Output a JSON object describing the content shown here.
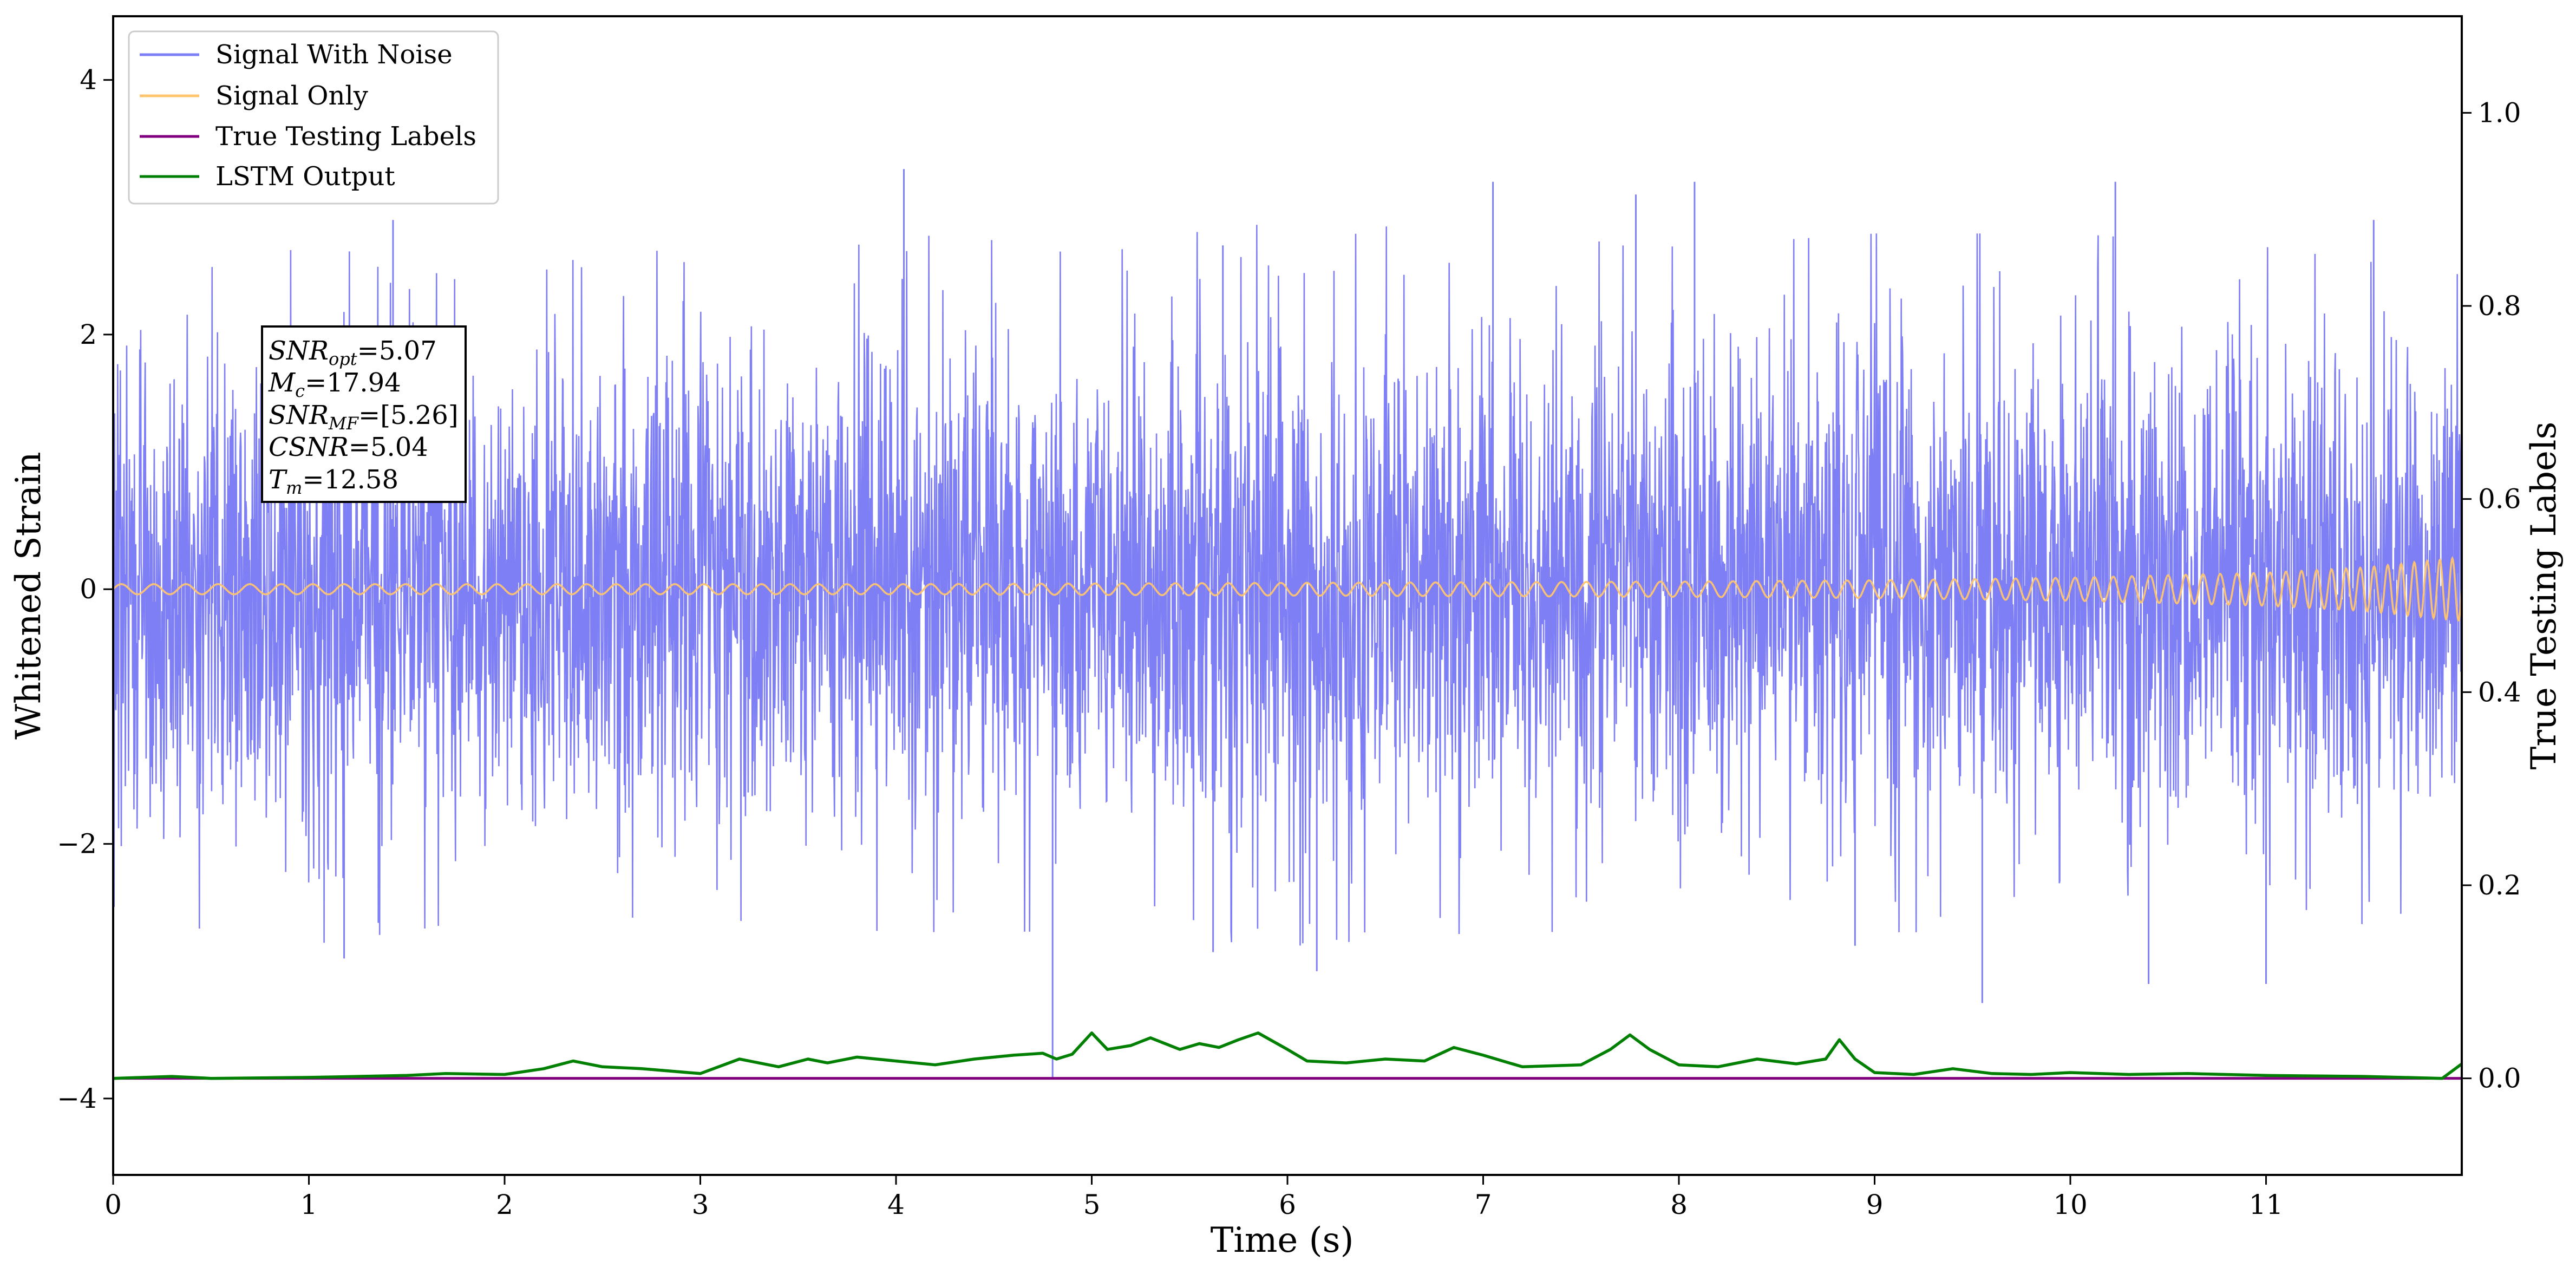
{
  "chart_data": {
    "type": "line",
    "title": "",
    "xlabel": "Time (s)",
    "ylabel_left": "Whitened Strain",
    "ylabel_right": "True Testing Labels",
    "xlim": [
      0,
      12
    ],
    "ylim_left": [
      -4.6,
      4.5
    ],
    "ylim_right": [
      -0.1,
      1.1
    ],
    "x_ticks": [
      0,
      1,
      2,
      3,
      4,
      5,
      6,
      7,
      8,
      9,
      10,
      11
    ],
    "y_ticks_left": [
      -4,
      -2,
      0,
      2,
      4
    ],
    "y_ticks_right": [
      0.0,
      0.2,
      0.4,
      0.6,
      0.8,
      1.0
    ],
    "y_tick_labels_left": [
      "−4",
      "−2",
      "0",
      "2",
      "4"
    ],
    "y_tick_labels_right": [
      "0.0",
      "0.2",
      "0.4",
      "0.6",
      "0.8",
      "1.0"
    ],
    "grid": false,
    "legend_position": "top-left",
    "series": [
      {
        "name": "Signal With Noise",
        "color": "#7f7ff5",
        "axis": "left",
        "description": "noise-dominated whitened strain",
        "envelope_x": [
          0,
          1,
          2,
          3,
          4,
          5,
          6,
          7,
          8,
          9,
          10,
          11,
          12
        ],
        "envelope_high": [
          2.1,
          2.4,
          2.3,
          2.4,
          2.5,
          2.4,
          2.6,
          2.5,
          2.4,
          2.5,
          2.5,
          2.4,
          2.2
        ],
        "envelope_low": [
          -2.3,
          -2.5,
          -2.3,
          -2.3,
          -2.4,
          -2.4,
          -2.5,
          -2.4,
          -2.4,
          -2.4,
          -2.4,
          -2.4,
          -2.3
        ],
        "peak_spikes": [
          {
            "x": 1.43,
            "y": 2.9
          },
          {
            "x": 4.04,
            "y": 3.3
          },
          {
            "x": 5.67,
            "y": 2.7
          },
          {
            "x": 7.05,
            "y": 3.2
          },
          {
            "x": 7.78,
            "y": 3.1
          },
          {
            "x": 8.08,
            "y": 3.2
          },
          {
            "x": 10.23,
            "y": 3.2
          },
          {
            "x": 11.55,
            "y": 2.9
          },
          {
            "x": 1.18,
            "y": -2.9
          },
          {
            "x": 4.8,
            "y": -3.85
          },
          {
            "x": 5.62,
            "y": -2.85
          },
          {
            "x": 6.15,
            "y": -3.0
          },
          {
            "x": 8.9,
            "y": -2.8
          },
          {
            "x": 9.55,
            "y": -3.25
          },
          {
            "x": 10.4,
            "y": -3.1
          },
          {
            "x": 11.0,
            "y": -3.1
          }
        ]
      },
      {
        "name": "Signal Only",
        "color": "#ffc56e",
        "axis": "left",
        "description": "chirp with growing amplitude and frequency",
        "x": [
          0,
          2,
          4,
          6,
          8,
          9,
          10,
          11,
          11.5,
          12
        ],
        "amplitude": [
          0.04,
          0.04,
          0.04,
          0.05,
          0.06,
          0.07,
          0.09,
          0.13,
          0.17,
          0.25
        ],
        "frequency_hz": [
          6,
          6.5,
          7,
          7.5,
          8,
          9,
          10,
          12,
          14,
          16
        ]
      },
      {
        "name": "True Testing Labels",
        "color": "#800080",
        "axis": "right",
        "x": [
          0,
          12
        ],
        "y": [
          0.0,
          0.0
        ]
      },
      {
        "name": "LSTM Output",
        "color": "#008000",
        "axis": "right",
        "x": [
          0,
          0.3,
          0.5,
          1.0,
          1.5,
          1.7,
          2.0,
          2.2,
          2.35,
          2.5,
          2.7,
          3.0,
          3.2,
          3.4,
          3.55,
          3.65,
          3.8,
          4.0,
          4.2,
          4.4,
          4.6,
          4.75,
          4.82,
          4.9,
          5.0,
          5.08,
          5.2,
          5.3,
          5.45,
          5.55,
          5.65,
          5.75,
          5.85,
          6.0,
          6.1,
          6.3,
          6.5,
          6.7,
          6.85,
          7.0,
          7.2,
          7.5,
          7.65,
          7.75,
          7.85,
          8.0,
          8.2,
          8.4,
          8.6,
          8.75,
          8.82,
          8.9,
          9.0,
          9.2,
          9.4,
          9.6,
          9.8,
          10.0,
          10.3,
          10.6,
          11.0,
          11.5,
          11.9,
          12.0
        ],
        "y": [
          0.0,
          0.002,
          0.0,
          0.001,
          0.003,
          0.005,
          0.004,
          0.01,
          0.018,
          0.012,
          0.01,
          0.005,
          0.02,
          0.012,
          0.02,
          0.016,
          0.022,
          0.018,
          0.014,
          0.02,
          0.024,
          0.026,
          0.02,
          0.025,
          0.047,
          0.03,
          0.034,
          0.042,
          0.03,
          0.036,
          0.032,
          0.04,
          0.047,
          0.03,
          0.018,
          0.016,
          0.02,
          0.018,
          0.032,
          0.024,
          0.012,
          0.014,
          0.03,
          0.045,
          0.03,
          0.014,
          0.012,
          0.02,
          0.015,
          0.02,
          0.04,
          0.02,
          0.006,
          0.004,
          0.01,
          0.005,
          0.004,
          0.006,
          0.004,
          0.005,
          0.003,
          0.002,
          0.0,
          0.015
        ]
      }
    ],
    "annotation": {
      "lines": [
        {
          "var": "SNR",
          "sub": "opt",
          "value": "=5.07"
        },
        {
          "var": "M",
          "sub": "c",
          "value": "=17.94"
        },
        {
          "var": "SNR",
          "sub": "MF",
          "value": "=[5.26]"
        },
        {
          "var": "CSNR",
          "sub": "",
          "value": "=5.04"
        },
        {
          "var": "T",
          "sub": "m",
          "value": "=12.58"
        }
      ]
    }
  }
}
